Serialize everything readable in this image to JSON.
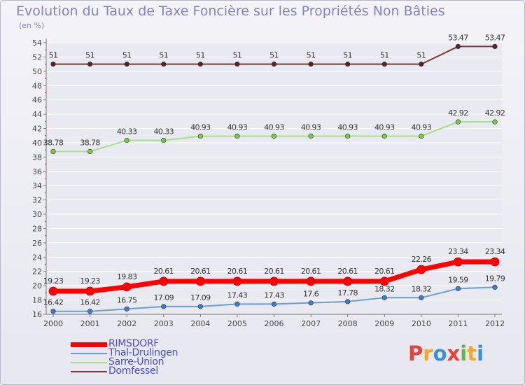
{
  "header": {
    "title": "Evolution du Taux de Taxe Foncière sur les Propriétés Non Bâties",
    "unit": "(en %)"
  },
  "logo": {
    "text": "Proxiti",
    "letters": [
      "P",
      "r",
      "o",
      "x",
      "i",
      "t",
      "i"
    ]
  },
  "colors": {
    "title": "#8282c8",
    "axis": "#7a7a7a",
    "grid": "#ffffff",
    "legend_text": "#4d4dcc",
    "logo": [
      "#e8403a",
      "#f5a623",
      "#3a8fd8",
      "#e8403a",
      "#69b34c",
      "#f5a623",
      "#3a8fd8"
    ]
  },
  "chart_data": {
    "type": "line",
    "title": "Evolution du Taux de Taxe Foncière sur les Propriétés Non Bâties",
    "ylabel": "(en %)",
    "xlabel": "",
    "categories": [
      "2000",
      "2001",
      "2002",
      "2003",
      "2004",
      "2005",
      "2006",
      "2007",
      "2008",
      "2009",
      "2010",
      "2011",
      "2012"
    ],
    "ylim": [
      16,
      54
    ],
    "yticks": [
      16,
      18,
      20,
      22,
      24,
      26,
      28,
      30,
      32,
      34,
      36,
      38,
      40,
      42,
      44,
      46,
      48,
      50,
      52,
      54
    ],
    "grid": true,
    "legend_position": "bottom-left",
    "series": [
      {
        "name": "RIMSDORF",
        "color": "#ff0000",
        "marker": "#ff0000",
        "weight": "heavy",
        "values": [
          19.23,
          19.23,
          19.83,
          20.61,
          20.61,
          20.61,
          20.61,
          20.61,
          20.61,
          20.61,
          22.26,
          23.34,
          23.34
        ],
        "labels": [
          "19.23",
          "19.23",
          "19.83",
          "20.61",
          "20.61",
          "20.61",
          "20.61",
          "20.61",
          "20.61",
          "20.61",
          "22.26",
          "23.34",
          "23.34"
        ]
      },
      {
        "name": "Thal-Drulingen",
        "color": "#6a9fd0",
        "marker": "#3a7fc8",
        "weight": "thin",
        "values": [
          16.42,
          16.42,
          16.75,
          17.09,
          17.09,
          17.43,
          17.43,
          17.6,
          17.78,
          18.32,
          18.32,
          19.59,
          19.79
        ],
        "labels": [
          "16.42",
          "16.42",
          "16.75",
          "17.09",
          "17.09",
          "17.43",
          "17.43",
          "17.6",
          "17.78",
          "18.32",
          "18.32",
          "19.59",
          "19.79"
        ]
      },
      {
        "name": "Sarre-Union",
        "color": "#a8e088",
        "marker": "#7cc84a",
        "weight": "thin",
        "values": [
          38.78,
          38.78,
          40.33,
          40.33,
          40.93,
          40.93,
          40.93,
          40.93,
          40.93,
          40.93,
          40.93,
          42.92,
          42.92
        ],
        "labels": [
          "38.78",
          "38.78",
          "40.33",
          "40.33",
          "40.93",
          "40.93",
          "40.93",
          "40.93",
          "40.93",
          "40.93",
          "40.93",
          "42.92",
          "42.92"
        ]
      },
      {
        "name": "Domfessel",
        "color": "#7a3a3a",
        "marker": "#5a2222",
        "weight": "thin",
        "values": [
          51,
          51,
          51,
          51,
          51,
          51,
          51,
          51,
          51,
          51,
          51,
          53.47,
          53.47
        ],
        "labels": [
          "51",
          "51",
          "51",
          "51",
          "51",
          "51",
          "51",
          "51",
          "51",
          "51",
          "51",
          "53.47",
          "53.47"
        ]
      }
    ]
  }
}
